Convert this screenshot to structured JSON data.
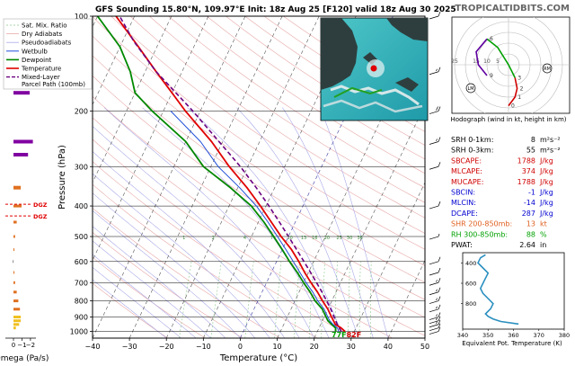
{
  "title": "GFS Sounding 15.80°N, 109.97°E Init: 18z Aug 25 [F120] valid 18z Aug 30 2025",
  "brand": "TROPICALTIDBITS.COM",
  "colors": {
    "temperature": "#e00000",
    "dewpoint": "#008800",
    "wetbulb": "#1f4fd8",
    "parcel": "#6a0080",
    "dry_adiabat": "#e8a8a8",
    "moist_adiabat": "#a8a8e8",
    "mixing_ratio": "#8fc98f",
    "isotherm": "#555555",
    "isobar": "#000000",
    "omega": "#e07020",
    "omega_high": "#8000a0",
    "thetae": "#2a8fbf",
    "hodo_low": "#d00000",
    "hodo_mid": "#00a000",
    "hodo_high": "#6000a0"
  },
  "legend": {
    "items": [
      {
        "label": "Sat. Mix. Ratio",
        "style": "mixing"
      },
      {
        "label": "Dry Adiabats",
        "style": "dry"
      },
      {
        "label": "Pseudoadiabats",
        "style": "moist"
      },
      {
        "label": "Wetbulb",
        "style": "wetbulb"
      },
      {
        "label": "Dewpoint",
        "style": "dewpoint"
      },
      {
        "label": "Temperature",
        "style": "temperature"
      },
      {
        "label": "Mixed-Layer\nParcel Path (100mb)",
        "style": "parcel"
      }
    ]
  },
  "chart_data": [
    {
      "type": "line",
      "name": "skew-t",
      "xlabel": "Temperature (°C)",
      "ylabel": "Pressure (hPa)",
      "xlim": [
        -40,
        50
      ],
      "ylim": [
        1050,
        100
      ],
      "y_scale": "log",
      "x_ticks": [
        -40,
        -30,
        -20,
        -10,
        0,
        10,
        20,
        30,
        40,
        50
      ],
      "y_ticks": [
        100,
        200,
        300,
        400,
        500,
        600,
        700,
        800,
        900,
        1000
      ],
      "mixing_ratio_labels": [
        "1",
        "2",
        "4",
        "7",
        "10",
        "13",
        "16",
        "20",
        "25",
        "30",
        "36"
      ],
      "surface_label": "77F82F",
      "series": [
        {
          "name": "Temperature",
          "p": [
            1000,
            975,
            950,
            925,
            900,
            850,
            800,
            750,
            700,
            650,
            600,
            550,
            500,
            450,
            400,
            350,
            300,
            250,
            200,
            175,
            150,
            125,
            100
          ],
          "t": [
            27.5,
            26,
            24,
            23,
            22,
            20,
            17.5,
            15,
            12,
            9,
            6,
            2.5,
            -2,
            -6.5,
            -11.5,
            -17.5,
            -25,
            -33,
            -44,
            -50,
            -57,
            -65,
            -75
          ]
        },
        {
          "name": "Dewpoint",
          "p": [
            1000,
            975,
            950,
            925,
            900,
            850,
            800,
            750,
            700,
            650,
            600,
            550,
            500,
            450,
            400,
            350,
            300,
            250,
            200,
            175,
            150,
            125,
            100
          ],
          "t": [
            25,
            24.5,
            23,
            21.5,
            20.5,
            18.5,
            15.5,
            13,
            10,
            7,
            3.5,
            0,
            -4,
            -8.5,
            -14,
            -22,
            -32,
            -40,
            -53,
            -60,
            -64,
            -70,
            -80
          ]
        },
        {
          "name": "Wetbulb",
          "p": [
            1000,
            975,
            950,
            925,
            900,
            850,
            800,
            750,
            700,
            650,
            600,
            550,
            500,
            450,
            400,
            350,
            300,
            250,
            200
          ],
          "t": [
            25.8,
            25,
            23.4,
            22,
            21,
            19,
            16.2,
            13.7,
            10.7,
            7.7,
            4.5,
            1,
            -3,
            -7.4,
            -12.6,
            -19.5,
            -28,
            -36,
            -48
          ]
        },
        {
          "name": "Mixed-Layer Parcel Path (100mb)",
          "p": [
            1000,
            950,
            900,
            850,
            800,
            750,
            700,
            650,
            600,
            550,
            500,
            450,
            400,
            350,
            300,
            250,
            200,
            150,
            120,
            100
          ],
          "t": [
            26.5,
            24.5,
            22.7,
            20.8,
            18.6,
            16.2,
            13.5,
            10.6,
            7.4,
            3.9,
            0,
            -4.3,
            -9.2,
            -15,
            -22,
            -31,
            -42,
            -57,
            -67,
            -74
          ]
        }
      ]
    },
    {
      "type": "bar",
      "name": "omega",
      "xlabel": "Omega (Pa/s)",
      "x_ticks": [
        "0",
        "−1",
        "−2"
      ],
      "ylim": [
        1050,
        100
      ],
      "annotations": [
        "DGZ",
        "DGZ"
      ],
      "p": [
        175,
        250,
        275,
        350,
        400,
        450,
        500,
        550,
        600,
        650,
        700,
        750,
        800,
        850,
        900,
        925,
        950,
        975
      ],
      "values": [
        -2.0,
        -2.4,
        -1.8,
        -0.9,
        -1.0,
        -0.4,
        -0.2,
        -0.1,
        0.1,
        -0.1,
        -0.2,
        -0.4,
        -0.6,
        -0.8,
        -0.9,
        -0.9,
        -0.7,
        -0.3
      ]
    },
    {
      "type": "scatter",
      "name": "hodograph",
      "caption": "Hodograph (wind in kt, height in km)",
      "ring_labels": [
        "25",
        "15",
        "10",
        "5"
      ],
      "markers": [
        "0",
        "1",
        "2",
        "3",
        "6",
        "9"
      ],
      "storm_markers": [
        "LM",
        "RM"
      ],
      "u": [
        0,
        3,
        4,
        3,
        0,
        -5,
        -10,
        -15,
        -14,
        -10
      ],
      "v": [
        -19,
        -15,
        -11,
        -6,
        0,
        8,
        12,
        6,
        0,
        -5
      ],
      "heights_km": [
        0,
        1,
        2,
        3,
        4,
        5,
        6,
        7,
        8,
        9
      ]
    },
    {
      "type": "line",
      "name": "theta-e",
      "xlabel": "Equivalent Pot. Temperature (K)",
      "xlim": [
        340,
        380
      ],
      "ylim": [
        1050,
        300
      ],
      "x_ticks": [
        340,
        350,
        360,
        370,
        380
      ],
      "y_ticks": [
        400,
        600,
        800
      ],
      "p": [
        1000,
        975,
        950,
        925,
        900,
        850,
        800,
        750,
        700,
        650,
        600,
        550,
        500,
        450,
        400,
        350,
        320
      ],
      "thetae": [
        362,
        355,
        352,
        350,
        349,
        351,
        352,
        350,
        348,
        347,
        348,
        349,
        350,
        348,
        346,
        347,
        349
      ]
    }
  ],
  "indices": [
    {
      "label": "SRH 0-1km:",
      "value": "8",
      "unit": "m²s⁻²",
      "color": "#000000"
    },
    {
      "label": "SRH 0-3km:",
      "value": "55",
      "unit": "m²s⁻²",
      "color": "#000000"
    },
    {
      "label": "SBCAPE:",
      "value": "1788",
      "unit": "J/kg",
      "color": "#d00000"
    },
    {
      "label": "MLCAPE:",
      "value": "374",
      "unit": "J/kg",
      "color": "#d00000"
    },
    {
      "label": "MUCAPE:",
      "value": "1788",
      "unit": "J/kg",
      "color": "#d00000"
    },
    {
      "label": "SBCIN:",
      "value": "-1",
      "unit": "J/kg",
      "color": "#0000d0"
    },
    {
      "label": "MLCIN:",
      "value": "-14",
      "unit": "J/kg",
      "color": "#0000d0"
    },
    {
      "label": "DCAPE:",
      "value": "287",
      "unit": "J/kg",
      "color": "#0000d0"
    },
    {
      "label": "SHR 200-850mb:",
      "value": "13",
      "unit": "kt",
      "color": "#e06020"
    },
    {
      "label": "RH 300-850mb:",
      "value": "88",
      "unit": "%",
      "color": "#00a000"
    },
    {
      "label": "PWAT:",
      "value": "2.64",
      "unit": "in",
      "color": "#000000"
    }
  ],
  "winds": [
    {
      "p": 100,
      "kt": 10
    },
    {
      "p": 150,
      "kt": 15
    },
    {
      "p": 200,
      "kt": 20
    },
    {
      "p": 250,
      "kt": 15
    },
    {
      "p": 300,
      "kt": 10
    },
    {
      "p": 400,
      "kt": 10
    },
    {
      "p": 500,
      "kt": 5
    },
    {
      "p": 600,
      "kt": 10
    },
    {
      "p": 650,
      "kt": 10
    },
    {
      "p": 700,
      "kt": 15
    },
    {
      "p": 750,
      "kt": 15
    },
    {
      "p": 800,
      "kt": 15
    },
    {
      "p": 850,
      "kt": 15
    },
    {
      "p": 900,
      "kt": 15
    },
    {
      "p": 925,
      "kt": 15
    },
    {
      "p": 950,
      "kt": 15
    },
    {
      "p": 975,
      "kt": 10
    },
    {
      "p": 1000,
      "kt": 10
    }
  ]
}
